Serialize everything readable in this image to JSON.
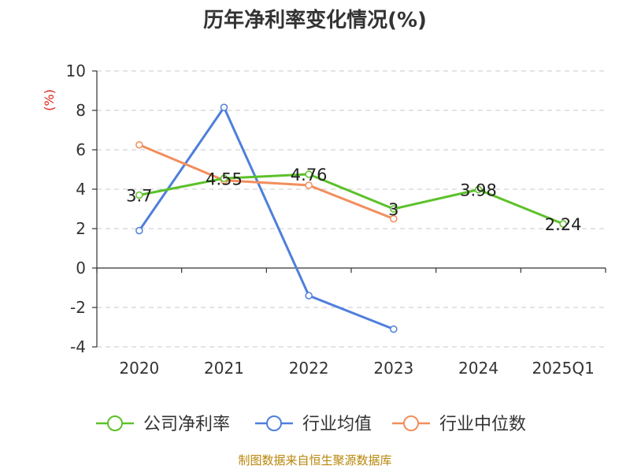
{
  "chart_data": {
    "type": "line",
    "title": "历年净利率变化情况(%)",
    "ylabel": "(%)",
    "categories": [
      "2020",
      "2021",
      "2022",
      "2023",
      "2024",
      "2025Q1"
    ],
    "ylim": [
      -4,
      10
    ],
    "yticks": [
      -4,
      -2,
      0,
      2,
      4,
      6,
      8,
      10
    ],
    "ytick_labels": [
      "-4",
      "-2",
      "0",
      "2",
      "4",
      "6",
      "8",
      "10"
    ],
    "grid": true,
    "legend_position": "bottom",
    "series": [
      {
        "name": "公司净利率",
        "color": "#5cc12a",
        "values": [
          3.7,
          4.55,
          4.76,
          3,
          3.98,
          2.24
        ],
        "labels": [
          "3.7",
          "4.55",
          "4.76",
          "3",
          "3.98",
          "2.24"
        ]
      },
      {
        "name": "行业均值",
        "color": "#4f7fdc",
        "values": [
          1.9,
          8.15,
          -1.4,
          -3.1,
          null,
          null
        ]
      },
      {
        "name": "行业中位数",
        "color": "#f28e5c",
        "values": [
          6.25,
          4.45,
          4.2,
          2.5,
          null,
          null
        ]
      }
    ]
  },
  "source": "制图数据来自恒生聚源数据库"
}
